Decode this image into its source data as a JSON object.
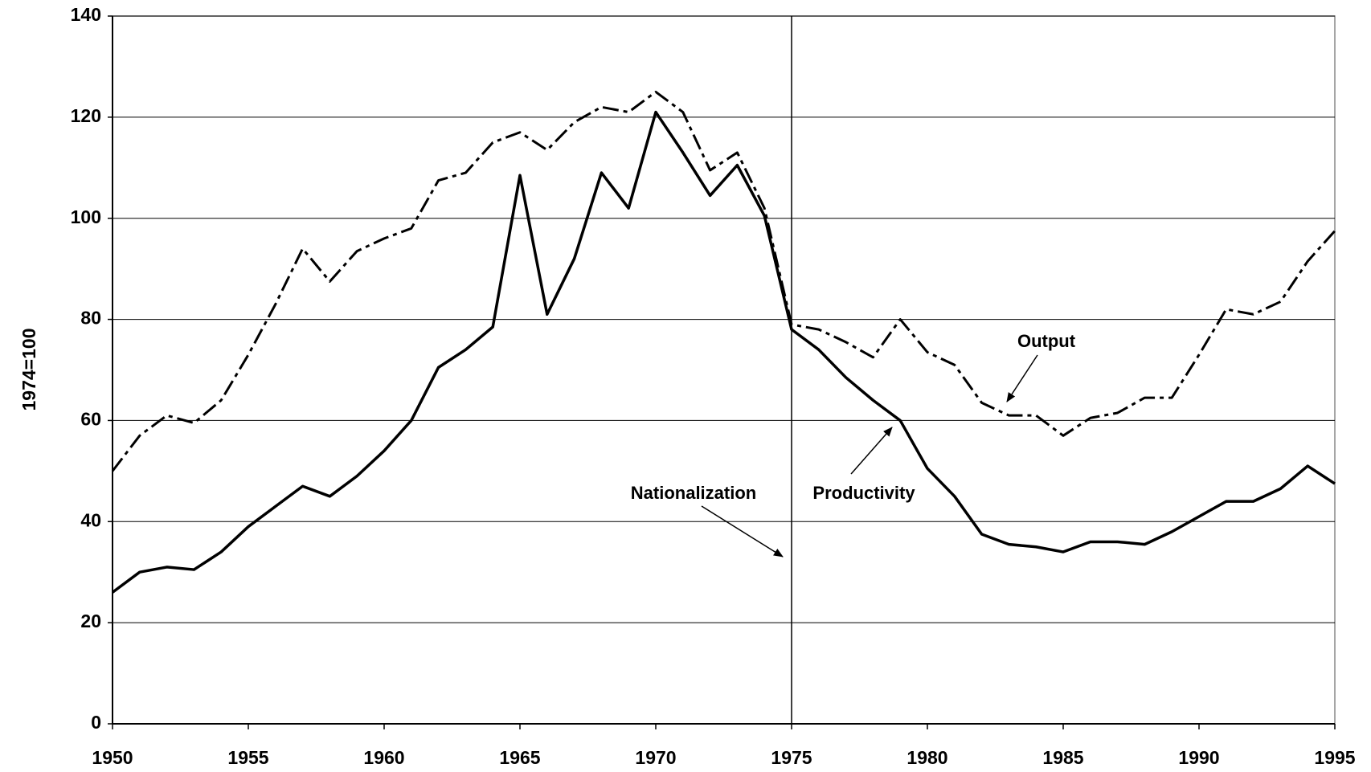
{
  "chart_data": {
    "type": "line",
    "y_label": "1974=100",
    "x": [
      1950,
      1951,
      1952,
      1953,
      1954,
      1955,
      1956,
      1957,
      1958,
      1959,
      1960,
      1961,
      1962,
      1963,
      1964,
      1965,
      1966,
      1967,
      1968,
      1969,
      1970,
      1971,
      1972,
      1973,
      1974,
      1975,
      1976,
      1977,
      1978,
      1979,
      1980,
      1981,
      1982,
      1983,
      1984,
      1985,
      1986,
      1987,
      1988,
      1989,
      1990,
      1991,
      1992,
      1993,
      1994,
      1995
    ],
    "series": [
      {
        "name": "Productivity",
        "color": "#000000",
        "style": "solid",
        "values": [
          26,
          30,
          31,
          30.5,
          34,
          39,
          43,
          47,
          45,
          49,
          54,
          60,
          70.5,
          74,
          78.5,
          108.5,
          81,
          92,
          109,
          102,
          121,
          113,
          104.5,
          110.5,
          100.5,
          78,
          74,
          68.5,
          64,
          60,
          50.5,
          45,
          37.5,
          35.5,
          35,
          34,
          36,
          36,
          35.5,
          38,
          41,
          44,
          44,
          46.5,
          51,
          47.5
        ]
      },
      {
        "name": "Output",
        "color": "#000000",
        "style": "dashdot",
        "values": [
          50,
          57,
          61,
          59.5,
          64,
          73,
          83,
          94,
          87.5,
          93.5,
          96,
          98,
          107.5,
          109,
          115,
          117,
          113.5,
          119,
          122,
          121,
          125,
          121,
          109.5,
          113,
          102,
          79,
          78,
          75.5,
          72.5,
          80,
          73.5,
          71,
          63.5,
          61,
          61,
          57,
          60.5,
          61.5,
          64.5,
          64.5,
          73,
          82,
          81,
          83.5,
          91.5,
          97.5
        ]
      }
    ],
    "vline": {
      "value": 1975,
      "label": "Nationalization"
    },
    "xlim": [
      1950,
      1995
    ],
    "xticks": [
      1950,
      1955,
      1960,
      1965,
      1970,
      1975,
      1980,
      1985,
      1990,
      1995
    ],
    "ylim": [
      0,
      140
    ],
    "yticks": [
      0,
      20,
      40,
      60,
      80,
      100,
      120,
      140
    ],
    "grid": true
  }
}
